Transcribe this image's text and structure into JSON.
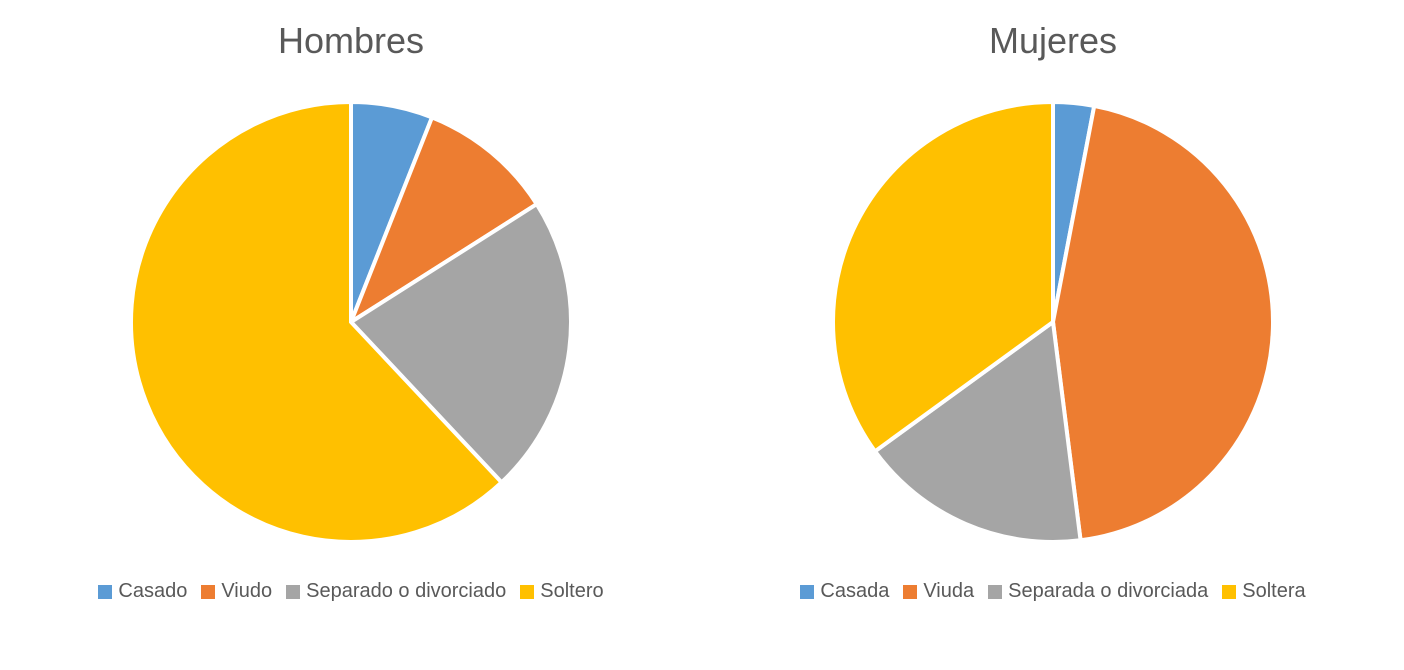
{
  "background_color": "#ffffff",
  "text_color": "#595959",
  "title_fontsize": 36,
  "legend_fontsize": 20,
  "slice_stroke": "#ffffff",
  "slice_stroke_width": 4,
  "pie_radius": 220,
  "charts": [
    {
      "title": "Hombres",
      "type": "pie",
      "slices": [
        {
          "label": "Casado",
          "value": 6,
          "color": "#5b9bd5"
        },
        {
          "label": "Viudo",
          "value": 10,
          "color": "#ed7d31"
        },
        {
          "label": "Separado o divorciado",
          "value": 22,
          "color": "#a5a5a5"
        },
        {
          "label": "Soltero",
          "value": 62,
          "color": "#ffc000"
        }
      ]
    },
    {
      "title": "Mujeres",
      "type": "pie",
      "slices": [
        {
          "label": "Casada",
          "value": 3,
          "color": "#5b9bd5"
        },
        {
          "label": "Viuda",
          "value": 45,
          "color": "#ed7d31"
        },
        {
          "label": "Separada o divorciada",
          "value": 17,
          "color": "#a5a5a5"
        },
        {
          "label": "Soltera",
          "value": 35,
          "color": "#ffc000"
        }
      ]
    }
  ]
}
